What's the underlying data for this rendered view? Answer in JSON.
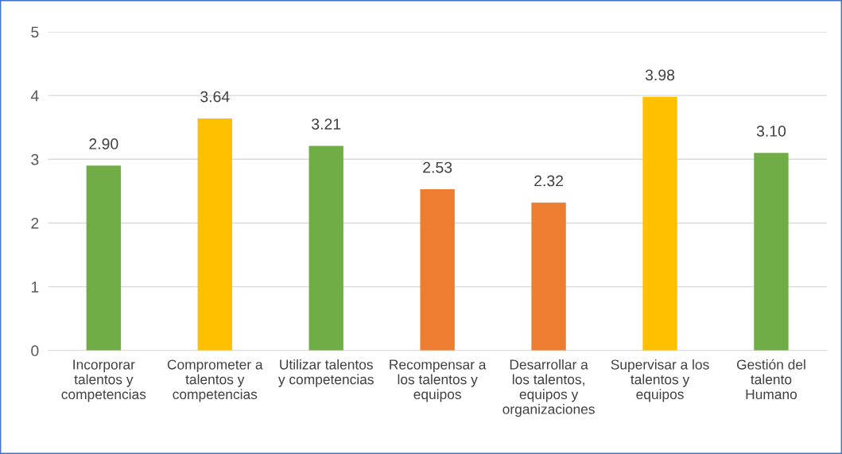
{
  "chart_data": {
    "type": "bar",
    "categories": [
      "Incorporar\ntalentos y\ncompetencias",
      "Comprometer a\ntalentos y\ncompetencias",
      "Utilizar talentos\ny competencias",
      "Recompensar a\nlos talentos y\nequipos",
      "Desarrollar a\nlos talentos,\nequipos y\norganizaciones",
      "Supervisar a los\ntalentos y\nequipos",
      "Gestión del\ntalento\nHumano"
    ],
    "values": [
      2.9,
      3.64,
      3.21,
      2.53,
      2.32,
      3.98,
      3.1
    ],
    "value_labels": [
      "2.90",
      "3.64",
      "3.21",
      "2.53",
      "2.32",
      "3.98",
      "3.10"
    ],
    "colors": [
      "#70ad47",
      "#ffc000",
      "#70ad47",
      "#ed7d31",
      "#ed7d31",
      "#ffc000",
      "#70ad47"
    ],
    "ylim": [
      0,
      5
    ],
    "yticks": [
      0,
      1,
      2,
      3,
      4,
      5
    ],
    "grid": "y",
    "legend": false
  }
}
